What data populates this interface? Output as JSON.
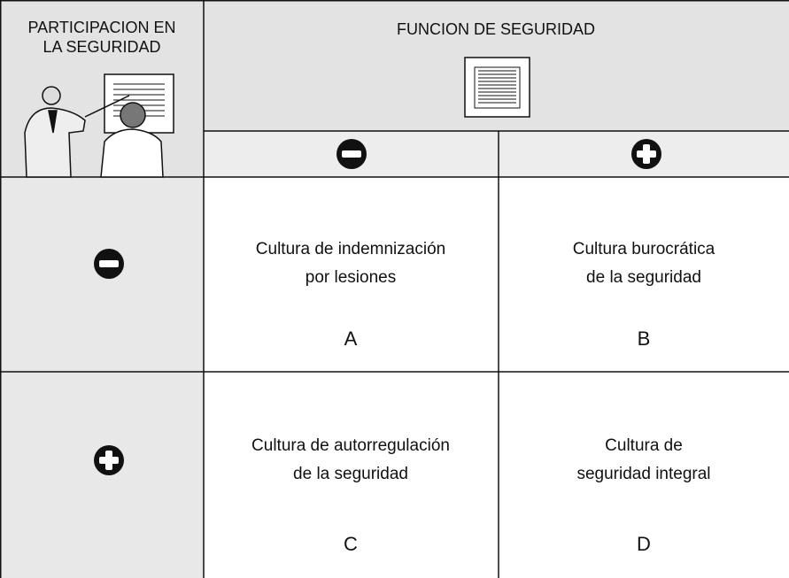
{
  "header": {
    "participation": [
      "PARTICIPACION EN",
      "LA SEGURIDAD"
    ],
    "function": "FUNCION DE SEGURIDAD"
  },
  "cells": [
    {
      "lines": [
        "Cultura de indemnización",
        "por lesiones"
      ],
      "letter": "A"
    },
    {
      "lines": [
        "Cultura burocrática",
        "de la seguridad"
      ],
      "letter": "B"
    },
    {
      "lines": [
        "Cultura de autorregulación",
        "de la seguridad"
      ],
      "letter": "C"
    },
    {
      "lines": [
        "Cultura de",
        "seguridad integral"
      ],
      "letter": "D"
    }
  ]
}
